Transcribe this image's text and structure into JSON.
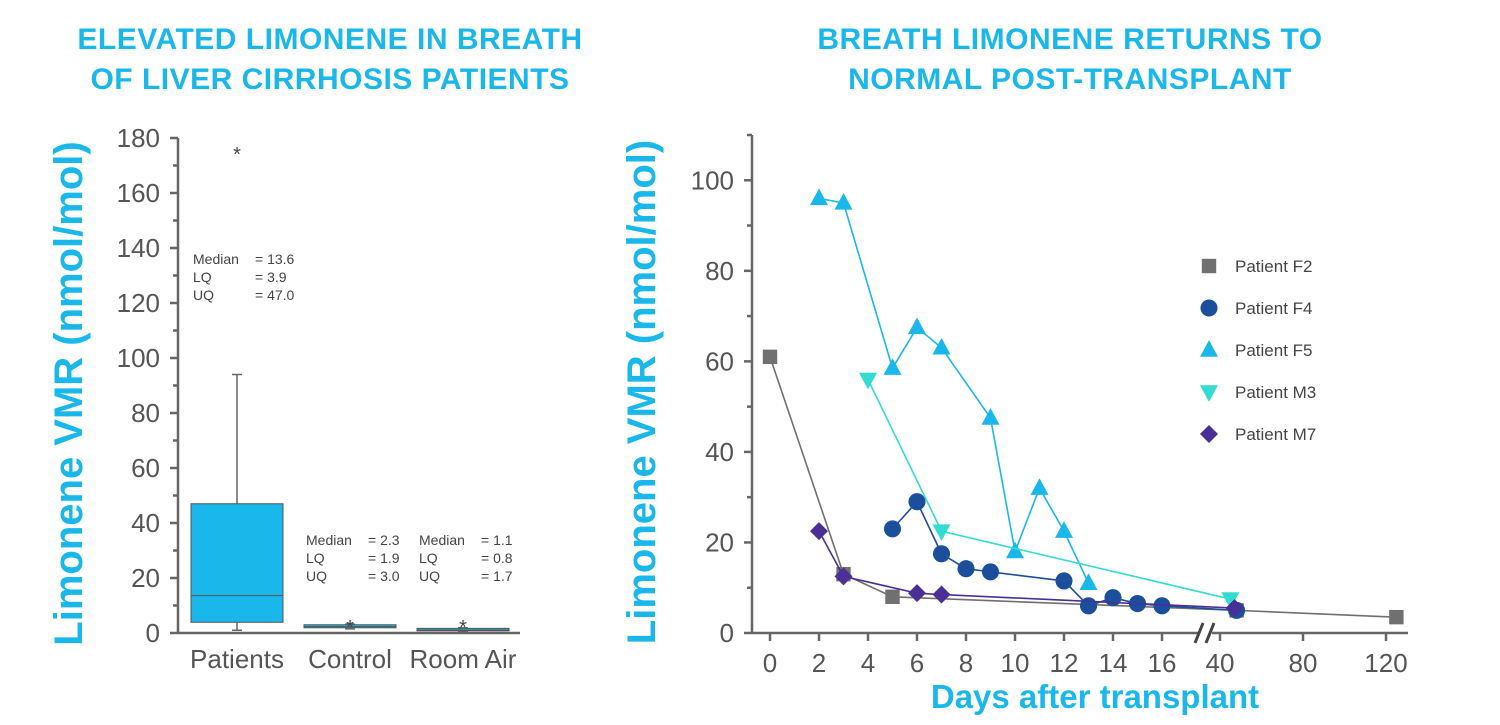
{
  "chart_data": [
    {
      "type": "box",
      "title": "ELEVATED LIMONENE IN BREATH\nOF LIVER CIRRHOSIS PATIENTS",
      "ylabel": "Limonene VMR (nmol/mol)",
      "xlabel": "",
      "ylim": [
        0,
        180
      ],
      "yticks": [
        0,
        20,
        40,
        60,
        80,
        100,
        120,
        140,
        160,
        180
      ],
      "categories": [
        "Patients",
        "Control",
        "Room Air"
      ],
      "box_color": "#1ab7ea",
      "boxes": [
        {
          "name": "Patients",
          "min": 1,
          "q1": 3.9,
          "median": 13.6,
          "q3": 47.0,
          "max": 94,
          "outliers": [
            176
          ]
        },
        {
          "name": "Control",
          "min": 1.5,
          "q1": 1.9,
          "median": 2.3,
          "q3": 3.0,
          "max": 3.2,
          "outliers": [
            4
          ]
        },
        {
          "name": "Room Air",
          "min": 0.6,
          "q1": 0.8,
          "median": 1.1,
          "q3": 1.7,
          "max": 1.9,
          "outliers": [
            4
          ]
        }
      ],
      "stats": [
        {
          "lines": [
            {
              "label": "Median",
              "value": "= 13.6"
            },
            {
              "label": "LQ",
              "value": "= 3.9"
            },
            {
              "label": "UQ",
              "value": "= 47.0"
            }
          ]
        },
        {
          "lines": [
            {
              "label": "Median",
              "value": "= 2.3"
            },
            {
              "label": "LQ",
              "value": "= 1.9"
            },
            {
              "label": "UQ",
              "value": "= 3.0"
            }
          ]
        },
        {
          "lines": [
            {
              "label": "Median",
              "value": "= 1.1"
            },
            {
              "label": "LQ",
              "value": "= 0.8"
            },
            {
              "label": "UQ",
              "value": "= 1.7"
            }
          ]
        }
      ]
    },
    {
      "type": "line",
      "title": "BREATH LIMONENE RETURNS TO\nNORMAL POST-TRANSPLANT",
      "ylabel": "Limonene VMR (nmol/mol)",
      "xlabel": "Days after transplant",
      "ylim": [
        0,
        110
      ],
      "yticks": [
        0,
        20,
        40,
        60,
        80,
        100
      ],
      "xticks": [
        "0",
        "2",
        "4",
        "6",
        "8",
        "10",
        "12",
        "14",
        "16",
        "40",
        "80",
        "120"
      ],
      "x_axis_break": "between 16 and 40",
      "legend_position": "right",
      "series": [
        {
          "name": "Patient F2",
          "marker": "square",
          "color": "#707070",
          "points": [
            [
              0,
              61
            ],
            [
              3,
              13
            ],
            [
              5,
              8
            ],
            [
              48,
              5
            ],
            [
              125,
              3.5
            ]
          ]
        },
        {
          "name": "Patient F4",
          "marker": "circle",
          "color": "#1b4f9c",
          "points": [
            [
              5,
              23
            ],
            [
              6,
              29
            ],
            [
              7,
              17.5
            ],
            [
              8,
              14.2
            ],
            [
              9,
              13.5
            ],
            [
              12,
              11.5
            ],
            [
              13,
              6
            ],
            [
              14,
              7.8
            ],
            [
              15,
              6.5
            ],
            [
              16,
              6
            ],
            [
              48,
              5
            ]
          ]
        },
        {
          "name": "Patient F5",
          "marker": "triangle-up",
          "color": "#1ab7ea",
          "points": [
            [
              2,
              96
            ],
            [
              3,
              95
            ],
            [
              5,
              58.5
            ],
            [
              6,
              67.5
            ],
            [
              7,
              63
            ],
            [
              9,
              47.5
            ],
            [
              10,
              18
            ],
            [
              11,
              32
            ],
            [
              12,
              22.5
            ],
            [
              13,
              11
            ]
          ]
        },
        {
          "name": "Patient M3",
          "marker": "triangle-down",
          "color": "#33dbd0",
          "points": [
            [
              4,
              56
            ],
            [
              7,
              22.5
            ],
            [
              45,
              7.5
            ]
          ]
        },
        {
          "name": "Patient M7",
          "marker": "diamond",
          "color": "#4a2f96",
          "points": [
            [
              2,
              22.5
            ],
            [
              3,
              12.5
            ],
            [
              6,
              8.8
            ],
            [
              7,
              8.5
            ],
            [
              47,
              5.5
            ]
          ]
        }
      ]
    }
  ]
}
